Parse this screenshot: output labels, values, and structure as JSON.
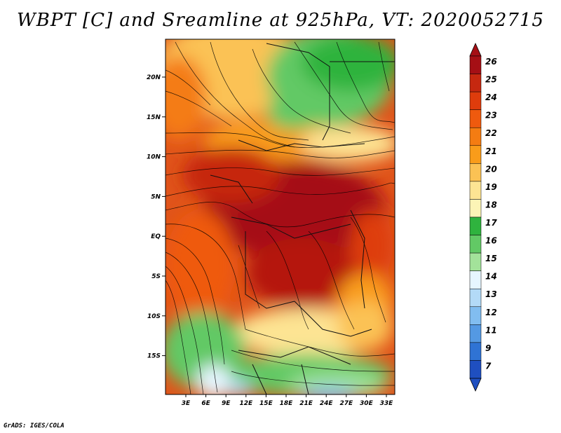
{
  "title": "WBPT [C] and Sreamline at 925hPa, VT: 2020052715",
  "credit": "GrADS: IGES/COLA",
  "map": {
    "lon_ticks": [
      "3E",
      "6E",
      "9E",
      "12E",
      "15E",
      "18E",
      "21E",
      "24E",
      "27E",
      "30E",
      "33E"
    ],
    "lat_ticks": [
      "20N",
      "15N",
      "10N",
      "5N",
      "EQ",
      "5S",
      "10S",
      "15S"
    ]
  },
  "colorbar": {
    "labels": [
      "26",
      "25",
      "24",
      "23",
      "22",
      "21",
      "20",
      "19",
      "18",
      "17",
      "16",
      "15",
      "14",
      "13",
      "12",
      "11",
      "9",
      "7"
    ],
    "colors": [
      "#a50f15",
      "#c62810",
      "#de3c0c",
      "#ef5a0e",
      "#f47c12",
      "#f99c1a",
      "#fbc254",
      "#fde493",
      "#fcf4b6",
      "#2fb33e",
      "#62c965",
      "#a3e29a",
      "#e6f6ff",
      "#b3daf7",
      "#81bdf0",
      "#5499e3",
      "#2f73d4",
      "#1f4fc0"
    ]
  }
}
